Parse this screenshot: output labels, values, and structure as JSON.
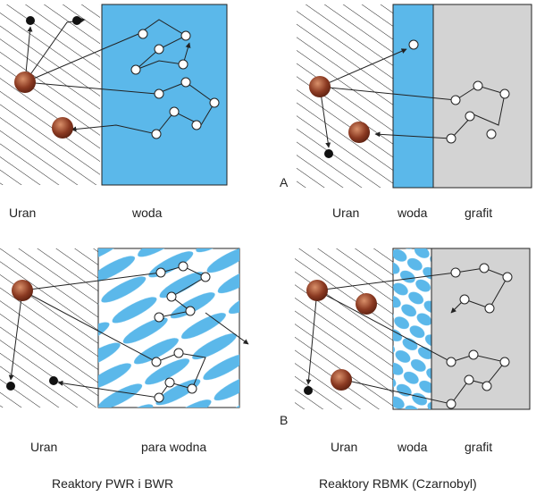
{
  "colors": {
    "water": "#5bb8ea",
    "graphite": "#d3d3d3",
    "hatch": "#222222",
    "uranium": "#8b3a22",
    "neutron_fast": "#ffffff",
    "neutron_slow": "#111111"
  },
  "panels": {
    "top_left": {
      "labels": [
        "Uran",
        "woda"
      ]
    },
    "top_right": {
      "marker": "A",
      "labels": [
        "Uran",
        "woda",
        "grafit"
      ]
    },
    "bottom_left": {
      "labels": [
        "Uran",
        "para wodna"
      ]
    },
    "bottom_right": {
      "marker": "B",
      "labels": [
        "Uran",
        "woda",
        "grafit"
      ]
    }
  },
  "captions": {
    "left": "Reaktory PWR i BWR",
    "right": "Reaktory RBMK (Czarnobyl)"
  },
  "icons": {
    "fuel_atom": "uranium-nucleus-icon",
    "free_neutron": "neutron-icon"
  }
}
